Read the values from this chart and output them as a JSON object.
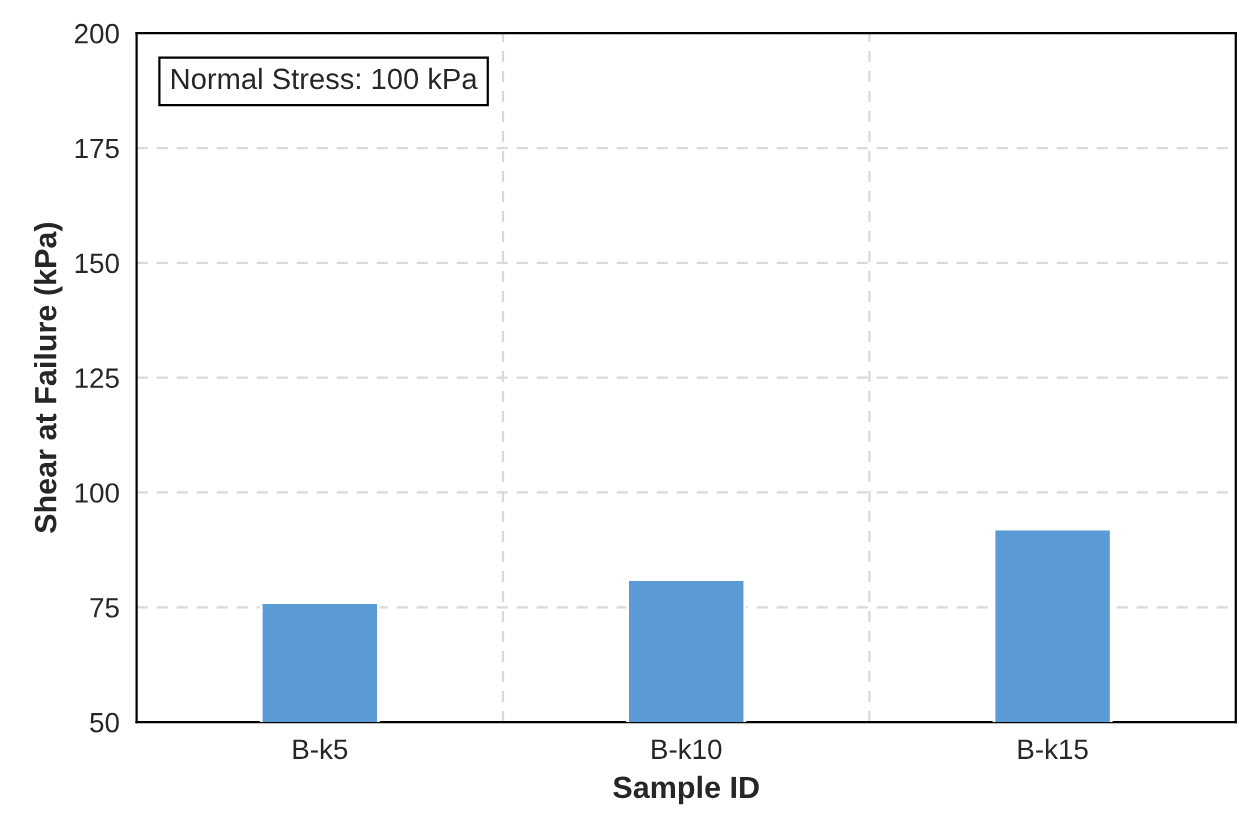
{
  "chart_data": {
    "type": "bar",
    "xlabel": "Sample ID",
    "ylabel": "Shear at Failure (kPa)",
    "categories": [
      "B-k5",
      "B-k10",
      "B-k15"
    ],
    "values": [
      76,
      81,
      92
    ],
    "color": "#5b9bd5",
    "ylim": [
      50,
      200
    ],
    "yticks": [
      50,
      75,
      100,
      125,
      150,
      175,
      200
    ],
    "grid": true,
    "annotations": [
      "Normal Stress: 100 kPa"
    ]
  }
}
